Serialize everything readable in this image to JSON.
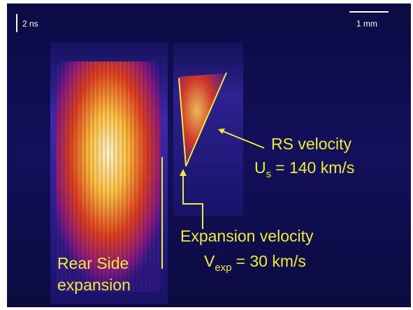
{
  "scale_bars": {
    "time": "2 ns",
    "length": "1 mm"
  },
  "annotations": {
    "rs_velocity": {
      "label": "RS velocity",
      "symbol": "U",
      "subscript": "s",
      "value": "= 140 km/s"
    },
    "expansion_velocity": {
      "label": "Expansion velocity",
      "symbol": "V",
      "subscript": "exp",
      "value": "= 30 km/s"
    },
    "rear_side": {
      "line1": "Rear Side",
      "line2": "expansion"
    }
  }
}
